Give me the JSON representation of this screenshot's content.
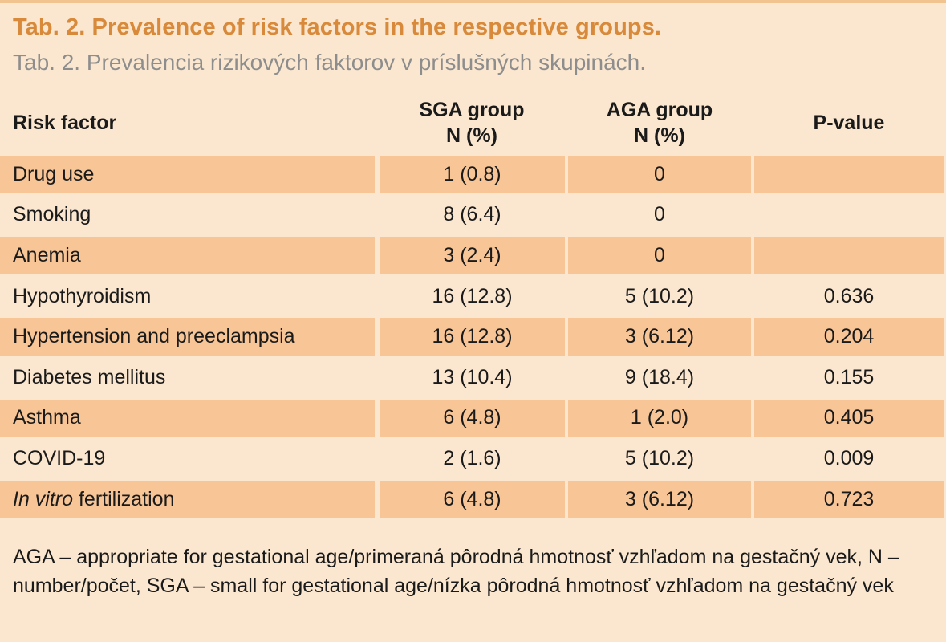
{
  "title_en": "Tab. 2. Prevalence of risk factors in the respective groups.",
  "title_sk": "Tab. 2. Prevalencia rizikových faktorov v príslušných skupinách.",
  "columns": {
    "risk_factor": "Risk factor",
    "sga_line1": "SGA group",
    "sga_line2": "N (%)",
    "aga_line1": "AGA group",
    "aga_line2": "N (%)",
    "pvalue": "P-value"
  },
  "rows": [
    {
      "label": "Drug use",
      "sga": "1 (0.8)",
      "aga": "0",
      "p": ""
    },
    {
      "label": "Smoking",
      "sga": "8 (6.4)",
      "aga": "0",
      "p": ""
    },
    {
      "label": "Anemia",
      "sga": "3 (2.4)",
      "aga": "0",
      "p": ""
    },
    {
      "label": "Hypothyroidism",
      "sga": "16 (12.8)",
      "aga": "5 (10.2)",
      "p": "0.636"
    },
    {
      "label": "Hypertension and preeclampsia",
      "sga": "16 (12.8)",
      "aga": "3 (6.12)",
      "p": "0.204"
    },
    {
      "label": "Diabetes mellitus",
      "sga": "13 (10.4)",
      "aga": "9 (18.4)",
      "p": "0.155"
    },
    {
      "label": "Asthma",
      "sga": "6 (4.8)",
      "aga": "1 (2.0)",
      "p": "0.405"
    },
    {
      "label": "COVID-19",
      "sga": "2 (1.6)",
      "aga": "5 (10.2)",
      "p": "0.009"
    },
    {
      "label_italic": "In vitro",
      "label": " fertilization",
      "sga": "6 (4.8)",
      "aga": "3 (6.12)",
      "p": "0.723"
    }
  ],
  "footnote": "AGA – appropriate for gestational age/primeraná pôrodná hmotnosť vzhľadom na gestačný vek, N – number/počet, SGA – small for gestational age/nízka pôrodná hmotnosť vzhľadom na gestačný vek"
}
